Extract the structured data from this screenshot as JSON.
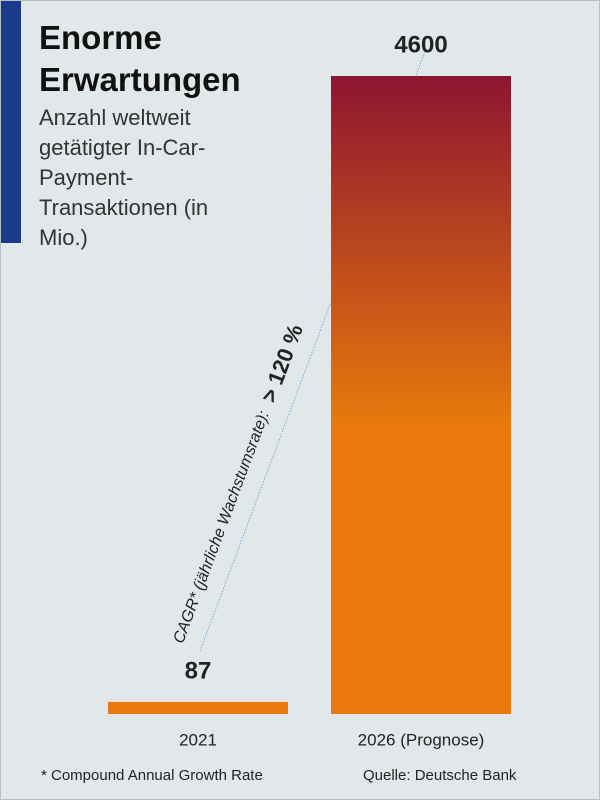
{
  "chart_data": {
    "type": "bar",
    "title": "Enorme Erwartungen",
    "subtitle": "Anzahl weltweit getätigter In-Car-Payment-Transaktionen (in Mio.)",
    "categories": [
      "2021",
      "2026 (Prognose)"
    ],
    "values": [
      87,
      4600
    ],
    "color": "#e97a0b",
    "gradient_top_color": "#8e1531",
    "annotation": "CAGR* (jährliche Wachstumsrate):",
    "annotation_value": "> 120 %",
    "footnote": "* Compound Annual Growth Rate",
    "source": "Quelle: Deutsche Bank"
  }
}
